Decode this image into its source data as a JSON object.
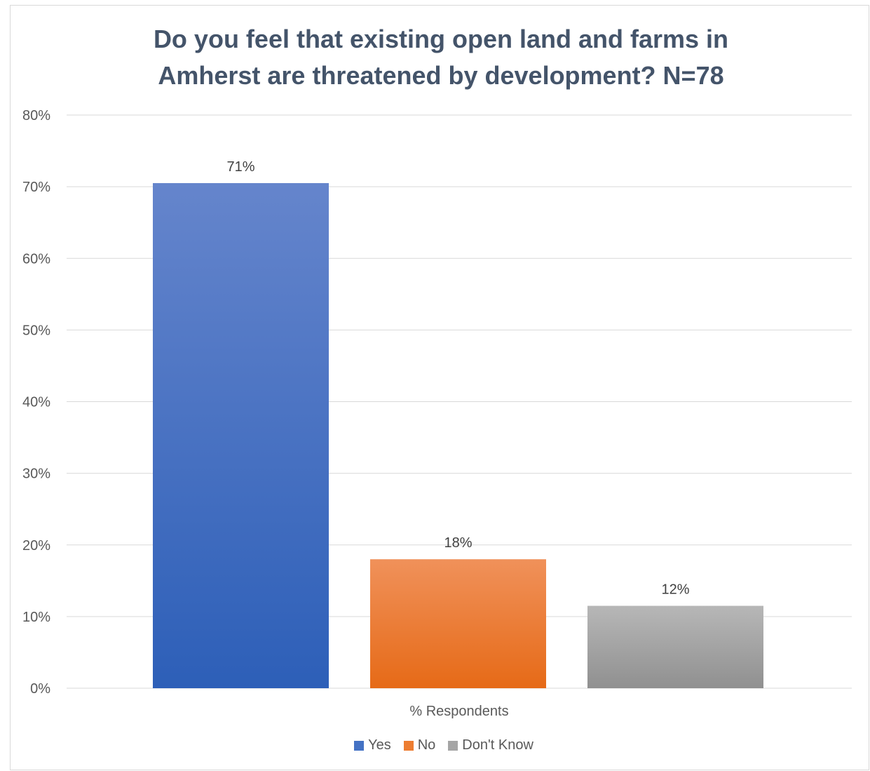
{
  "chart_data": {
    "type": "bar",
    "title": [
      "Do you feel that existing open land and farms in",
      "Amherst are threatened by development? N=78"
    ],
    "xlabel": "% Respondents",
    "ylabel": "",
    "ylim": [
      0,
      80
    ],
    "yticks": [
      "0%",
      "10%",
      "20%",
      "30%",
      "40%",
      "50%",
      "60%",
      "70%",
      "80%"
    ],
    "grid": true,
    "legend_position": "bottom",
    "categories": [
      "% Respondents"
    ],
    "series": [
      {
        "name": "Yes",
        "values": [
          70.5
        ],
        "label": "71%",
        "color": "#4472c4"
      },
      {
        "name": "No",
        "values": [
          18
        ],
        "label": "18%",
        "color": "#ed7d31"
      },
      {
        "name": "Don't Know",
        "values": [
          11.5
        ],
        "label": "12%",
        "color": "#a5a5a5"
      }
    ]
  }
}
